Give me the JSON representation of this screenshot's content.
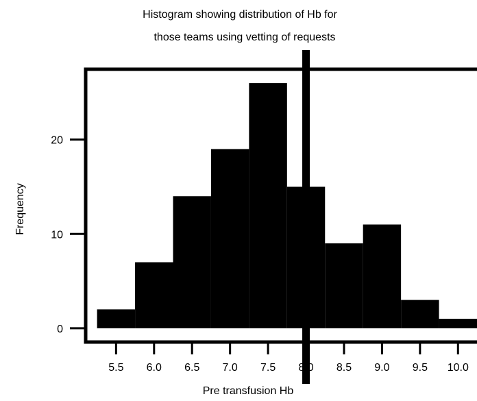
{
  "chart_data": {
    "type": "bar",
    "title_lines": [
      "Histogram showing distribution of Hb for",
      "those teams using vetting of requests"
    ],
    "xlabel": "Pre transfusion Hb",
    "ylabel": "Frequency",
    "bin_edges": [
      5.25,
      5.75,
      6.25,
      6.75,
      7.25,
      7.75,
      8.25,
      8.75,
      9.25,
      9.75,
      10.25
    ],
    "values": [
      2,
      7,
      14,
      19,
      26,
      15,
      9,
      11,
      3,
      1
    ],
    "x_ticks": [
      5.5,
      6.0,
      6.5,
      7.0,
      7.5,
      8.0,
      8.5,
      9.0,
      9.5,
      10.0
    ],
    "x_tick_labels": [
      "5.5",
      "6.0",
      "6.5",
      "7.0",
      "7.5",
      "8.0",
      "8.5",
      "9.0",
      "9.5",
      "10.0"
    ],
    "y_ticks": [
      0,
      10,
      20
    ],
    "y_tick_labels": [
      "0",
      "10",
      "20"
    ],
    "reference_line_x": 8.0,
    "xlim": [
      5.1,
      10.25
    ],
    "ylim": [
      -0.3,
      26.3
    ],
    "bar_color": "#000000",
    "grid": false
  }
}
